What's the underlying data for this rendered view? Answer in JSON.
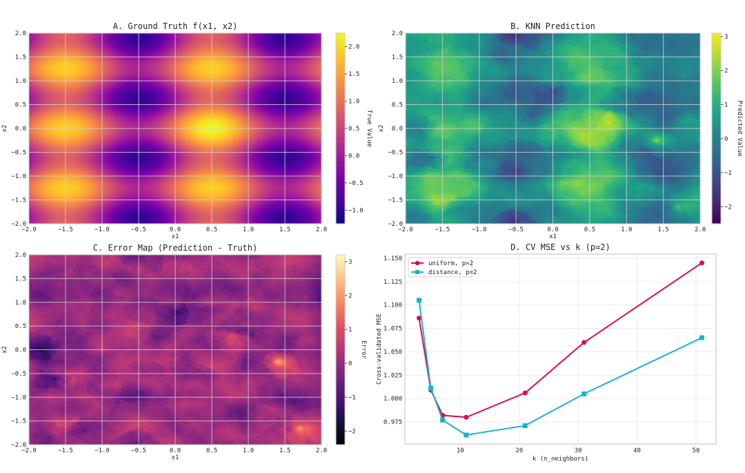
{
  "chart_data": [
    {
      "type": "heatmap",
      "title": "A. Ground Truth f(x1, x2)",
      "xlabel": "x1",
      "ylabel": "x2",
      "xlim": [
        -2.0,
        2.0
      ],
      "ylim": [
        -2.0,
        2.0
      ],
      "xticks": [
        -2.0,
        -1.5,
        -1.0,
        -0.5,
        0.0,
        0.5,
        1.0,
        1.5,
        2.0
      ],
      "yticks": [
        -2.0,
        -1.5,
        -1.0,
        -0.5,
        0.0,
        0.5,
        1.0,
        1.5,
        2.0
      ],
      "grid": true,
      "colormap": "plasma",
      "colorbar": {
        "label": "True Value",
        "range": [
          -1.25,
          2.25
        ],
        "ticks": [
          -1.0,
          -0.5,
          0.0,
          0.5,
          1.0,
          1.5,
          2.0
        ]
      }
    },
    {
      "type": "heatmap",
      "title": "B. KNN Prediction",
      "xlabel": "x1",
      "ylabel": "x2",
      "xlim": [
        -2.0,
        2.0
      ],
      "ylim": [
        -2.0,
        2.0
      ],
      "xticks": [
        -2.0,
        -1.5,
        -1.0,
        -0.5,
        0.0,
        0.5,
        1.0,
        1.5,
        2.0
      ],
      "yticks": [
        -2.0,
        -1.5,
        -1.0,
        -0.5,
        0.0,
        0.5,
        1.0,
        1.5,
        2.0
      ],
      "grid": true,
      "colormap": "viridis",
      "colorbar": {
        "label": "Predicted Value",
        "range": [
          -2.5,
          3.1
        ],
        "ticks": [
          -2,
          -1,
          0,
          1,
          2,
          3
        ]
      }
    },
    {
      "type": "heatmap",
      "title": "C. Error Map (Prediction - Truth)",
      "xlabel": "x1",
      "ylabel": "x2",
      "xlim": [
        -2.0,
        2.0
      ],
      "ylim": [
        -2.0,
        2.0
      ],
      "xticks": [
        -2.0,
        -1.5,
        -1.0,
        -0.5,
        0.0,
        0.5,
        1.0,
        1.5,
        2.0
      ],
      "yticks": [
        -2.0,
        -1.5,
        -1.0,
        -0.5,
        0.0,
        0.5,
        1.0,
        1.5,
        2.0
      ],
      "grid": true,
      "colormap": "magma",
      "colorbar": {
        "label": "Error",
        "range": [
          -2.4,
          3.2
        ],
        "ticks": [
          -2,
          -1,
          0,
          1,
          2,
          3
        ]
      }
    },
    {
      "type": "line",
      "title": "D. CV MSE vs k (p=2)",
      "xlabel": "k (n_neighbors)",
      "ylabel": "Cross-validated MSE",
      "xlim": [
        0.6,
        53.4
      ],
      "ylim": [
        0.9514,
        1.1544
      ],
      "xticks": [
        10,
        20,
        30,
        40,
        50
      ],
      "yticks": [
        0.975,
        1.0,
        1.025,
        1.05,
        1.075,
        1.1,
        1.125,
        1.15
      ],
      "grid": true,
      "legend": "top-left",
      "series": [
        {
          "name": "uniform, p=2",
          "marker": "circle",
          "color": "#e0094f",
          "x": [
            3,
            5,
            7,
            11,
            21,
            31,
            51
          ],
          "y": [
            1.086,
            1.009,
            0.982,
            0.98,
            1.006,
            1.06,
            1.145
          ]
        },
        {
          "name": "distance, p=2",
          "marker": "square",
          "color": "#17b3cc",
          "x": [
            3,
            5,
            7,
            11,
            21,
            31,
            51
          ],
          "y": [
            1.105,
            1.011,
            0.977,
            0.961,
            0.971,
            1.005,
            1.065
          ]
        }
      ]
    }
  ]
}
